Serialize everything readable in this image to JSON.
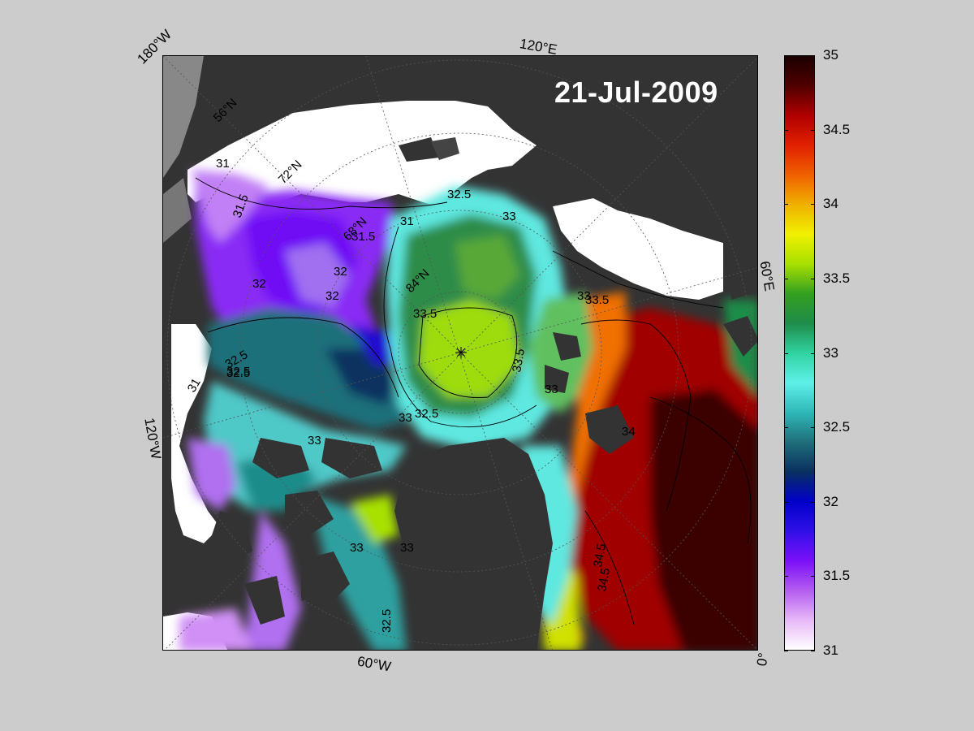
{
  "date": "21-Jul-2009",
  "edge_labels": {
    "top_left": "180°W",
    "top": "120°E",
    "left": "120°W",
    "right": "60°E",
    "bottom": "60°W",
    "bottom_right": "0°"
  },
  "latitude_labels": [
    "56°N",
    "72°N",
    "68°N",
    "84°N"
  ],
  "colorbar": {
    "min": 31,
    "max": 35,
    "ticks": [
      "35",
      "34.5",
      "34",
      "33.5",
      "33",
      "32.5",
      "32",
      "31.5",
      "31"
    ],
    "colors": [
      "#ffffff",
      "#e8b8f8",
      "#b45cf0",
      "#7a10f8",
      "#3010e8",
      "#0000c8",
      "#0a3060",
      "#1f6f7a",
      "#2fb8b8",
      "#5ef0e8",
      "#30d2a0",
      "#1f8c4a",
      "#34a020",
      "#a8e000",
      "#f0f000",
      "#f0b000",
      "#f06000",
      "#e02000",
      "#b00000",
      "#500000",
      "#1a0000"
    ]
  },
  "contour_labels": [
    "31",
    "31.5",
    "32",
    "32.5",
    "33",
    "33.5",
    "34",
    "34.5",
    "31",
    "32",
    "32.5",
    "33",
    "33.5",
    "33",
    "33.5",
    "32.5",
    "33",
    "32.5",
    "33",
    "34.5",
    "32.5",
    "33",
    "31",
    "31.5",
    "32",
    "32.5",
    "33"
  ],
  "colors": {
    "land": "#333333",
    "ice": "#ffffff",
    "gray_land": "#888888",
    "page_bg": "#cccccc"
  }
}
